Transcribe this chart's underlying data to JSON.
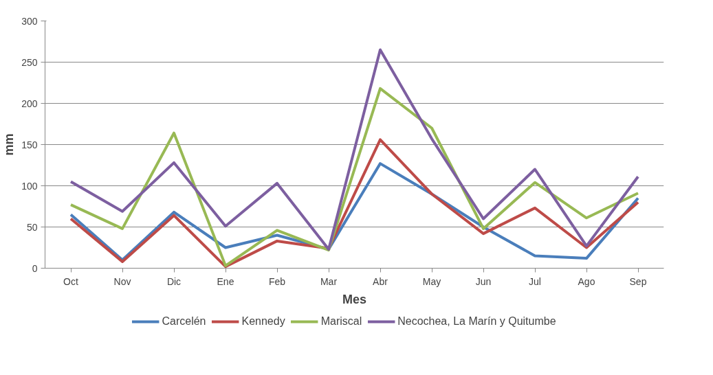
{
  "chart_data": {
    "type": "line",
    "xlabel": "Mes",
    "ylabel": "mm",
    "categories": [
      "Oct",
      "Nov",
      "Dic",
      "Ene",
      "Feb",
      "Mar",
      "Abr",
      "May",
      "Jun",
      "Jul",
      "Ago",
      "Sep"
    ],
    "series": [
      {
        "name": "Carcelén",
        "color": "#4a7ebb",
        "values": [
          65,
          10,
          68,
          25,
          40,
          23,
          127,
          90,
          50,
          15,
          12,
          85
        ]
      },
      {
        "name": "Kennedy",
        "color": "#be4b48",
        "values": [
          60,
          8,
          64,
          2,
          33,
          24,
          156,
          90,
          42,
          73,
          25,
          80
        ]
      },
      {
        "name": "Mariscal",
        "color": "#98b954",
        "values": [
          77,
          48,
          164,
          3,
          46,
          22,
          218,
          170,
          48,
          104,
          61,
          91
        ]
      },
      {
        "name": "Necochea, La Marín y Quitumbe",
        "color": "#7d5fa0",
        "values": [
          105,
          69,
          128,
          51,
          103,
          23,
          265,
          157,
          60,
          120,
          27,
          111
        ]
      }
    ],
    "ylim": [
      0,
      300
    ],
    "yticks": [
      0,
      50,
      100,
      150,
      200,
      250,
      300
    ],
    "grid": "y",
    "legend": "bottom",
    "line_style": "solid",
    "marker": "none"
  }
}
